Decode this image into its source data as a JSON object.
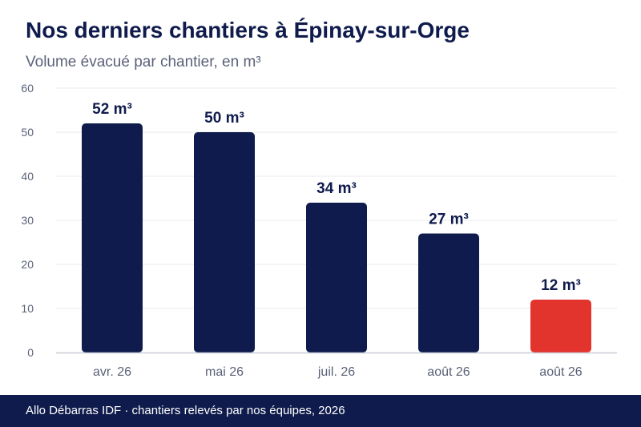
{
  "header": {
    "title": "Nos derniers chantiers à Épinay-sur-Orge",
    "subtitle": "Volume évacué par chantier, en m³"
  },
  "footer": {
    "source": "Allo Débarras IDF · chantiers relevés par nos équipes, 2026"
  },
  "colors": {
    "bar_default": "#0f1b4c",
    "bar_highlight": "#e3332d",
    "footer_bg": "#0f1b4c",
    "text_dark": "#0f1b4c",
    "text_muted": "#5b6178"
  },
  "chart_data": {
    "type": "bar",
    "title": "Nos derniers chantiers à Épinay-sur-Orge",
    "subtitle": "Volume évacué par chantier, en m³",
    "categories": [
      "avr. 26",
      "mai 26",
      "juil. 26",
      "août 26",
      "août 26"
    ],
    "values": [
      52,
      50,
      34,
      27,
      12
    ],
    "value_labels": [
      "52 m³",
      "50 m³",
      "34 m³",
      "27 m³",
      "12 m³"
    ],
    "highlight_index": 4,
    "ylim": [
      0,
      60
    ],
    "yticks": [
      0,
      10,
      20,
      30,
      40,
      50,
      60
    ],
    "xlabel": "",
    "ylabel": "",
    "grid": true,
    "legend": "none"
  }
}
